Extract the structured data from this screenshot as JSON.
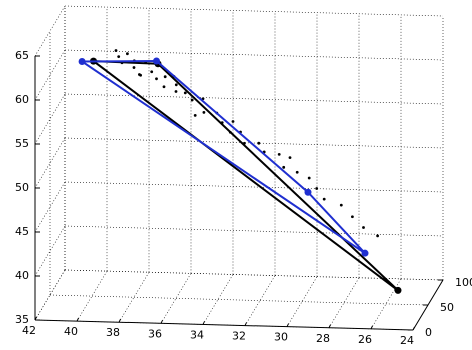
{
  "chart_data": {
    "type": "scatter3d",
    "xlim": [
      24,
      42
    ],
    "x_reversed": true,
    "xticks": [
      24,
      26,
      28,
      30,
      32,
      34,
      36,
      38,
      40,
      42
    ],
    "ylim": [
      0,
      100
    ],
    "yticks": [
      0,
      50,
      100
    ],
    "zlim": [
      35,
      65
    ],
    "zticks": [
      35,
      40,
      45,
      50,
      55,
      60,
      65
    ],
    "grid": true,
    "series": [
      {
        "mode": "markers",
        "color": "#000000",
        "x": [
          39.0,
          38.8,
          38.6,
          38.5,
          38.2,
          38.0,
          37.8,
          37.6,
          37.3,
          37.0,
          36.8,
          36.5,
          36.2,
          36.0,
          35.7,
          35.3,
          35.0,
          34.6,
          34.2,
          33.8,
          33.5,
          33.0,
          32.6,
          32.2,
          31.8,
          31.3,
          30.8,
          30.3,
          29.8,
          29.3,
          28.8,
          28.2,
          27.6,
          27.0,
          26.4,
          37.4,
          36.6,
          34.8,
          31.0,
          33.2
        ],
        "y": [
          60,
          55,
          70,
          45,
          65,
          50,
          75,
          40,
          60,
          55,
          70,
          45,
          65,
          50,
          60,
          55,
          70,
          45,
          60,
          50,
          65,
          55,
          40,
          60,
          50,
          65,
          45,
          55,
          60,
          50,
          40,
          55,
          50,
          45,
          50,
          30,
          85,
          30,
          80,
          35
        ],
        "z": [
          62.4,
          62.0,
          61.5,
          61.9,
          61.0,
          61.1,
          60.3,
          60.9,
          60.1,
          59.6,
          59.0,
          59.3,
          58.4,
          58.5,
          57.8,
          57.3,
          56.6,
          56.5,
          55.6,
          55.1,
          54.4,
          53.8,
          53.4,
          52.3,
          51.9,
          50.8,
          50.5,
          49.4,
          48.5,
          47.9,
          47.3,
          45.8,
          44.8,
          43.9,
          42.7,
          61.4,
          58.2,
          57.0,
          49.6,
          54.9
        ]
      },
      {
        "mode": "lines",
        "color": "#000000",
        "x": [
          40.5,
          37.5,
          25.0
        ],
        "y": [
          90,
          95,
          20
        ],
        "z": [
          59.4,
          59.0,
          38.3
        ]
      },
      {
        "mode": "lines",
        "color": "#1f2fd0",
        "x": [
          40.9,
          37.5,
          30.0,
          27.0
        ],
        "y": [
          80,
          90,
          70,
          50
        ],
        "z": [
          59.9,
          59.6,
          46.3,
          40.7
        ]
      }
    ]
  }
}
